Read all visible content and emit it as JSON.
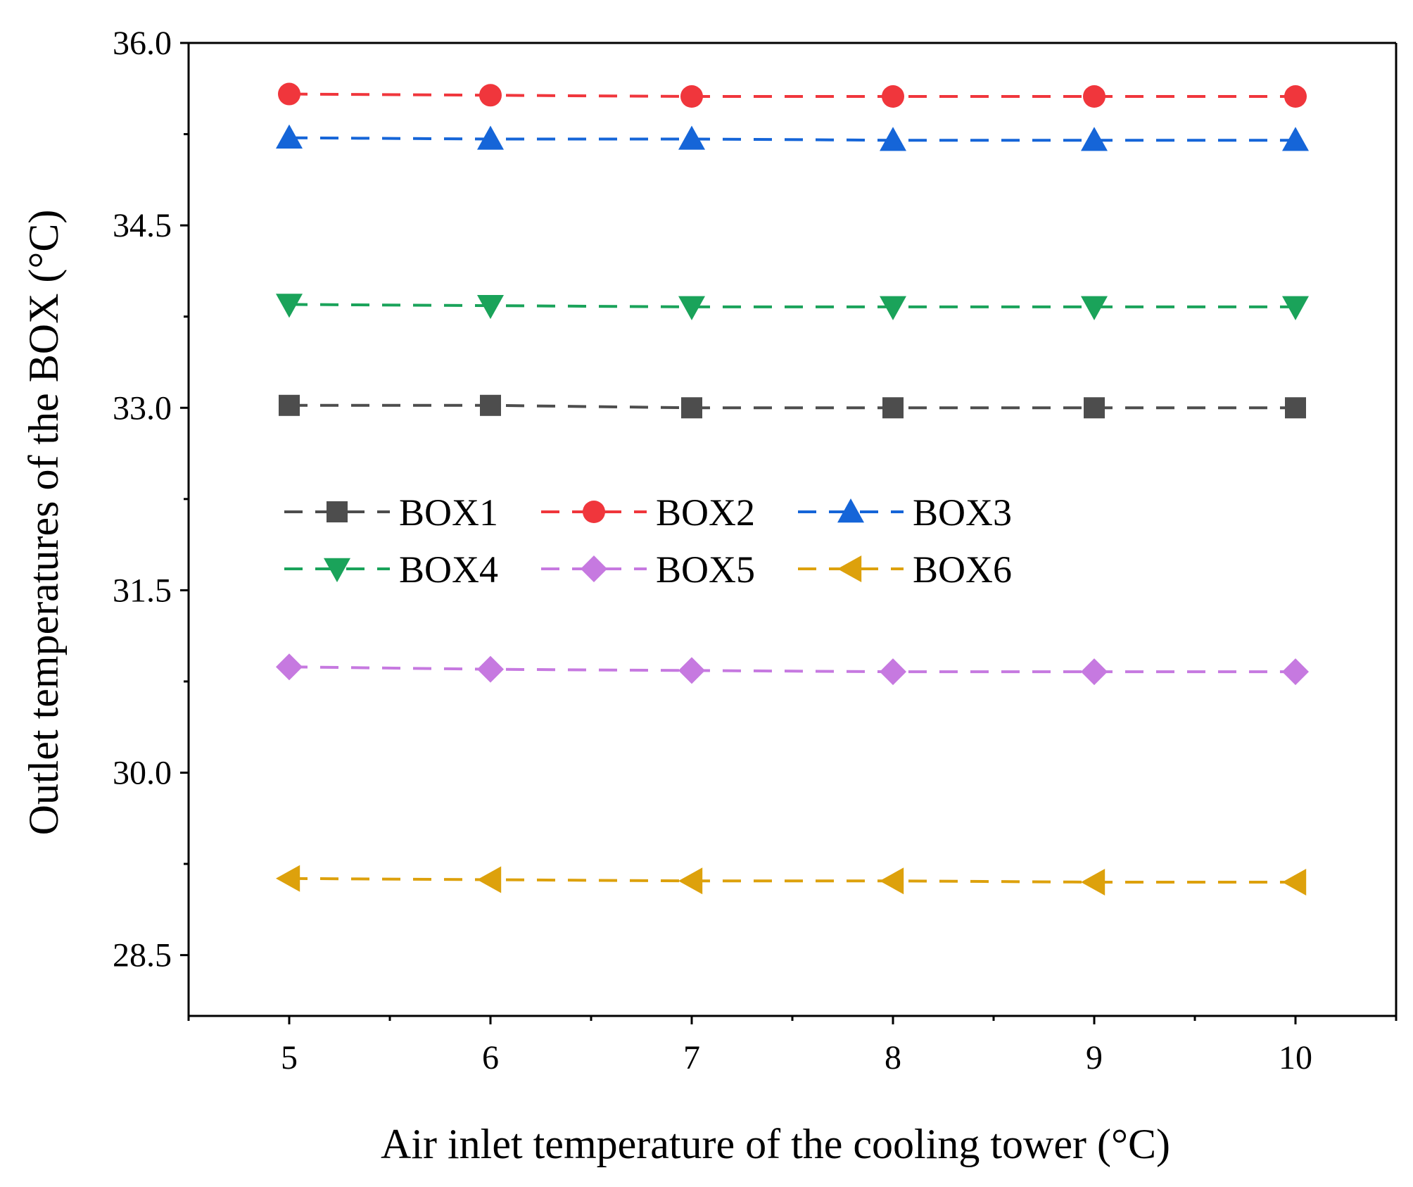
{
  "chart_data": {
    "type": "line",
    "xlabel": "Air inlet temperature of the cooling tower (°C)",
    "ylabel": "Outlet temperatures of the BOX (°C)",
    "xlim": [
      4.5,
      10.5
    ],
    "ylim": [
      28.0,
      36.0
    ],
    "x": [
      5,
      6,
      7,
      8,
      9,
      10
    ],
    "x_ticks": [
      "5",
      "6",
      "7",
      "8",
      "9",
      "10"
    ],
    "y_ticks": [
      "28.5",
      "30.0",
      "31.5",
      "33.0",
      "34.5",
      "36.0"
    ],
    "y_tick_values": [
      28.5,
      30.0,
      31.5,
      33.0,
      34.5,
      36.0
    ],
    "series": [
      {
        "name": "BOX1",
        "color": "#4d4d4d",
        "marker": "square",
        "values": [
          33.02,
          33.02,
          33.0,
          33.0,
          33.0,
          33.0
        ]
      },
      {
        "name": "BOX2",
        "color": "#f0363c",
        "marker": "circle",
        "values": [
          35.58,
          35.57,
          35.56,
          35.56,
          35.56,
          35.56
        ]
      },
      {
        "name": "BOX3",
        "color": "#1565d8",
        "marker": "triangle-up",
        "values": [
          35.22,
          35.21,
          35.21,
          35.2,
          35.2,
          35.2
        ]
      },
      {
        "name": "BOX4",
        "color": "#1aa35a",
        "marker": "triangle-down",
        "values": [
          33.85,
          33.84,
          33.83,
          33.83,
          33.83,
          33.83
        ]
      },
      {
        "name": "BOX5",
        "color": "#c679e0",
        "marker": "diamond",
        "values": [
          30.87,
          30.85,
          30.84,
          30.83,
          30.83,
          30.83
        ]
      },
      {
        "name": "BOX6",
        "color": "#dda10c",
        "marker": "triangle-left",
        "values": [
          29.13,
          29.12,
          29.11,
          29.11,
          29.1,
          29.1
        ]
      }
    ],
    "legend": {
      "placement": "center-left",
      "columns": 3
    }
  }
}
